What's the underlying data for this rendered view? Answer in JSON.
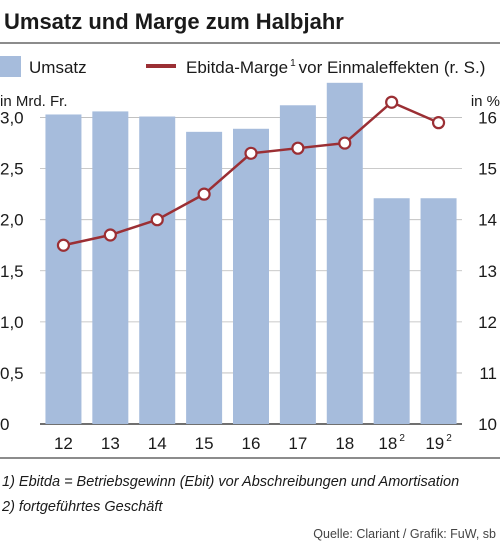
{
  "chart_data": {
    "type": "bar",
    "title": "Umsatz und Marge zum Halbjahr",
    "categories": [
      "12",
      "13",
      "14",
      "15",
      "16",
      "17",
      "18",
      "18",
      "19"
    ],
    "category_superscripts": [
      "",
      "",
      "",
      "",
      "",
      "",
      "",
      "2",
      "2"
    ],
    "series": [
      {
        "name": "Umsatz",
        "type": "bar",
        "axis": "left",
        "color": "#a6bcdc",
        "values": [
          3.03,
          3.06,
          3.01,
          2.86,
          2.89,
          3.12,
          3.34,
          2.21,
          2.21
        ]
      },
      {
        "name": "Ebitda-Marge",
        "name_superscript": "1",
        "name_suffix": "vor Einmaleffekten (r. S.)",
        "type": "line",
        "axis": "right",
        "color": "#9b2f34",
        "values": [
          13.5,
          13.7,
          14.0,
          14.5,
          15.3,
          15.4,
          15.5,
          16.3,
          15.9
        ]
      }
    ],
    "left_axis": {
      "label": "in Mrd. Fr.",
      "ylim": [
        0,
        3.25
      ],
      "ticks": [
        0,
        0.5,
        1.0,
        1.5,
        2.0,
        2.5,
        3.0
      ],
      "tick_labels": [
        "0",
        "0,5",
        "1,0",
        "1,5",
        "2,0",
        "2,5",
        "3,0"
      ]
    },
    "right_axis": {
      "label": "in %",
      "ylim": [
        10,
        16.5
      ],
      "ticks": [
        10,
        11,
        12,
        13,
        14,
        15,
        16
      ],
      "tick_labels": [
        "10",
        "11",
        "12",
        "13",
        "14",
        "15",
        "16"
      ]
    },
    "grid": true,
    "legend_position": "top",
    "footnotes": [
      "1) Ebitda = Betriebsgewinn (Ebit) vor Abschreibungen und Amortisation",
      "2) fortgeführtes Geschäft"
    ],
    "source": "Quelle: Clariant / Grafik: FuW, sb"
  }
}
